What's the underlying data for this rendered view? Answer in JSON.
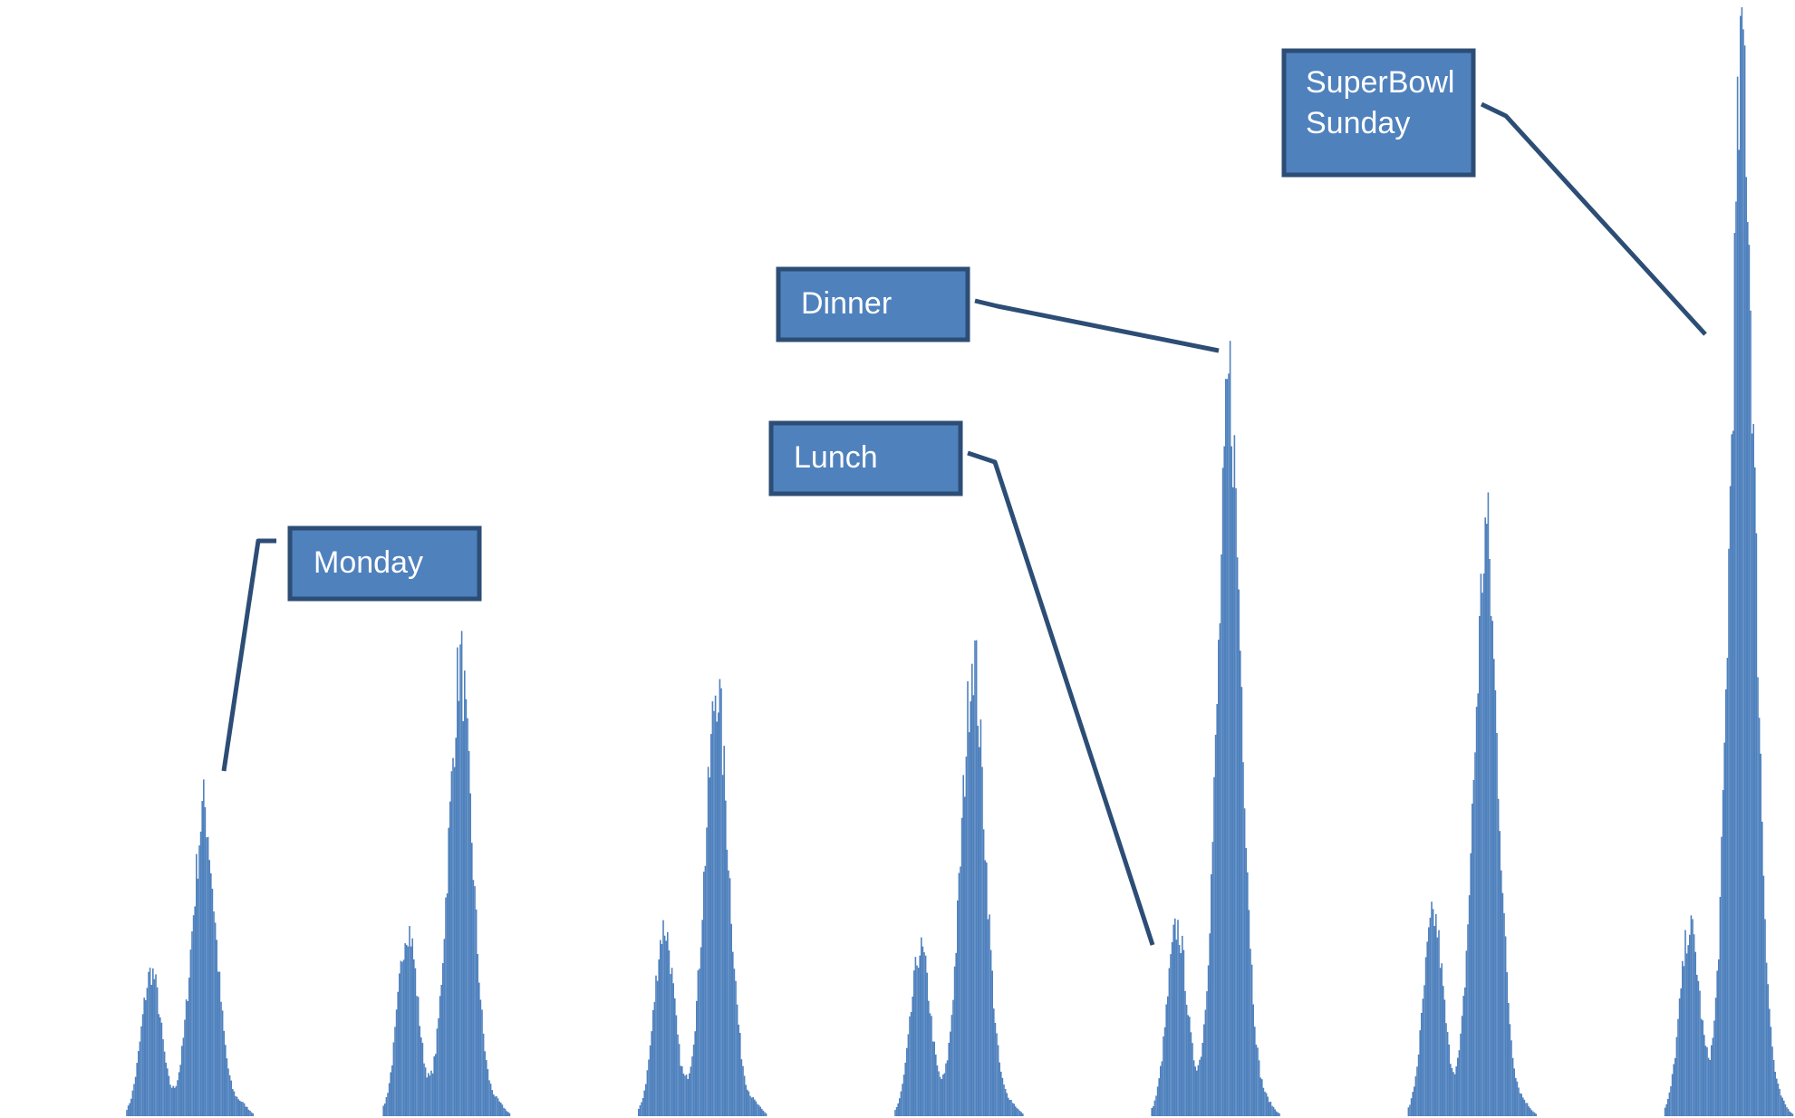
{
  "chart_data": {
    "type": "area",
    "title": "",
    "xlabel": "",
    "ylabel": "",
    "x_unit": "day",
    "grid": false,
    "legend": "none",
    "colors": {
      "series": "#4f81bd",
      "callout_fill": "#4f81bd",
      "callout_border": "#2c4d75",
      "callout_text": "#ffffff"
    },
    "ylim": [
      0,
      1.0
    ],
    "xlim": [
      -0.08,
      7.0
    ],
    "series": [
      {
        "days": [
          {
            "day": -1,
            "lunch": 0.0,
            "dinner": 0.08
          },
          {
            "day": 0,
            "lunch": 0.13,
            "dinner": 0.28
          },
          {
            "day": 1,
            "lunch": 0.17,
            "dinner": 0.41
          },
          {
            "day": 2,
            "lunch": 0.17,
            "dinner": 0.39
          },
          {
            "day": 3,
            "lunch": 0.15,
            "dinner": 0.42
          },
          {
            "day": 4,
            "lunch": 0.17,
            "dinner": 0.66
          },
          {
            "day": 5,
            "lunch": 0.18,
            "dinner": 0.53
          },
          {
            "day": 6,
            "lunch": 0.17,
            "dinner": 0.97
          }
        ]
      }
    ],
    "annotations": [
      {
        "lines": [
          "Monday"
        ],
        "day": 0
      },
      {
        "lines": [
          "Lunch"
        ],
        "day": 4,
        "target": "lunch"
      },
      {
        "lines": [
          "Dinner"
        ],
        "day": 4,
        "target": "dinner"
      },
      {
        "lines": [
          "SuperBowl",
          "Sunday"
        ],
        "day": 6,
        "target": "dinner"
      }
    ]
  }
}
